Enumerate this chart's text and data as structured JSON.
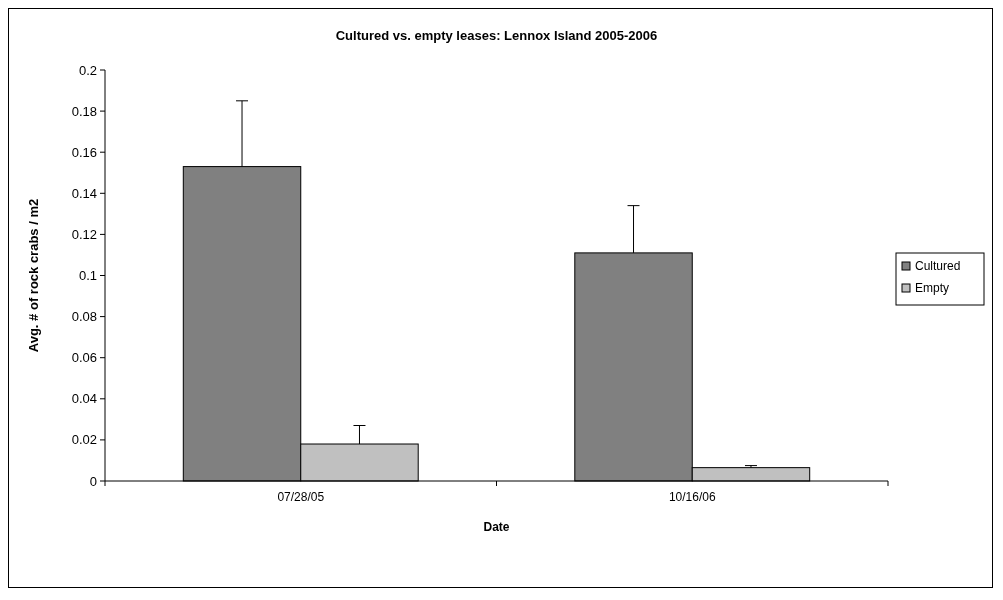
{
  "chart_data": {
    "type": "bar",
    "title": "Cultured vs. empty leases: Lennox Island 2005-2006",
    "xlabel": "Date",
    "ylabel": "Avg. # of rock crabs / m2",
    "categories": [
      "07/28/05",
      "10/16/06"
    ],
    "series": [
      {
        "name": "Cultured",
        "color": "#808080",
        "values": [
          0.153,
          0.111
        ],
        "errors": [
          [
            0.153,
            0.185
          ],
          [
            0.111,
            0.134
          ]
        ]
      },
      {
        "name": "Empty",
        "color": "#c0c0c0",
        "values": [
          0.018,
          0.0065
        ],
        "errors": [
          [
            0.018,
            0.027
          ],
          [
            0.0065,
            0.0075
          ]
        ]
      }
    ],
    "ylim": [
      0,
      0.2
    ],
    "yticks": [
      0,
      0.02,
      0.04,
      0.06,
      0.08,
      0.1,
      0.12,
      0.14,
      0.16,
      0.18,
      0.2
    ],
    "legend": "right",
    "grid": false
  }
}
